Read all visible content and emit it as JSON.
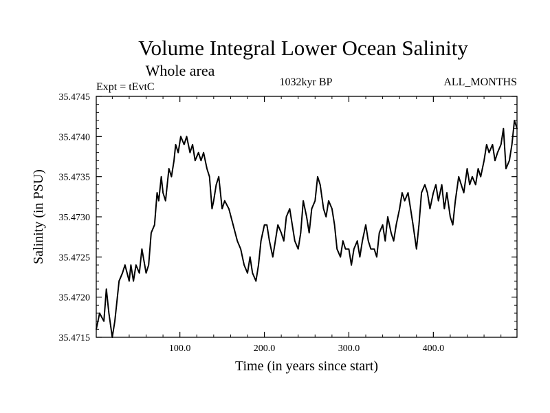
{
  "chart_data": {
    "type": "line",
    "title": "Volume Integral Lower Ocean Salinity",
    "subtitle": "Whole area",
    "annotations": {
      "left": "Expt = tEvtC",
      "center": "1032kyr BP",
      "right": "ALL_MONTHS"
    },
    "xlabel": "Time (in years since start)",
    "ylabel": "Salinity (in PSU)",
    "xlim": [
      1,
      499
    ],
    "ylim": [
      35.4715,
      35.4745
    ],
    "xticks": [
      100,
      200,
      300,
      400
    ],
    "xtick_labels": [
      "100.0",
      "200.0",
      "300.0",
      "400.0"
    ],
    "yticks": [
      35.4715,
      35.472,
      35.4725,
      35.473,
      35.4735,
      35.474,
      35.4745
    ],
    "ytick_labels": [
      "35.4715",
      "35.4720",
      "35.4725",
      "35.4730",
      "35.4735",
      "35.4740",
      "35.4745"
    ],
    "grid": false,
    "line_color": "#000000",
    "series": [
      {
        "name": "salinity",
        "x": [
          1,
          5,
          10,
          13,
          16,
          20,
          23,
          25,
          28,
          32,
          35,
          40,
          42,
          45,
          48,
          52,
          55,
          60,
          63,
          66,
          70,
          73,
          75,
          78,
          80,
          83,
          87,
          90,
          93,
          95,
          98,
          101,
          105,
          108,
          112,
          115,
          118,
          122,
          125,
          128,
          132,
          135,
          138,
          140,
          143,
          146,
          150,
          153,
          158,
          163,
          168,
          172,
          176,
          180,
          183,
          186,
          190,
          193,
          196,
          200,
          203,
          206,
          210,
          213,
          216,
          220,
          223,
          226,
          230,
          233,
          236,
          240,
          243,
          246,
          250,
          253,
          256,
          260,
          263,
          266,
          270,
          273,
          276,
          280,
          283,
          286,
          290,
          293,
          296,
          300,
          303,
          306,
          310,
          313,
          316,
          320,
          323,
          326,
          330,
          333,
          336,
          340,
          343,
          346,
          350,
          353,
          356,
          360,
          363,
          366,
          370,
          373,
          376,
          380,
          383,
          386,
          390,
          393,
          396,
          400,
          403,
          406,
          410,
          413,
          416,
          420,
          423,
          426,
          430,
          433,
          436,
          440,
          443,
          446,
          450,
          453,
          456,
          460,
          463,
          466,
          470,
          473,
          476,
          480,
          483,
          486,
          490,
          493,
          496,
          499
        ],
        "values": [
          35.4716,
          35.4718,
          35.4717,
          35.4721,
          35.4718,
          35.4715,
          35.4717,
          35.4719,
          35.4722,
          35.4723,
          35.4724,
          35.4722,
          35.4724,
          35.4722,
          35.4724,
          35.4723,
          35.4726,
          35.4723,
          35.4724,
          35.4728,
          35.4729,
          35.4733,
          35.4732,
          35.4735,
          35.4733,
          35.4732,
          35.4736,
          35.4735,
          35.4737,
          35.4739,
          35.4738,
          35.474,
          35.4739,
          35.474,
          35.4738,
          35.4739,
          35.4737,
          35.4738,
          35.4737,
          35.4738,
          35.4736,
          35.4735,
          35.4731,
          35.4732,
          35.4734,
          35.4735,
          35.4731,
          35.4732,
          35.4731,
          35.4729,
          35.4727,
          35.4726,
          35.4724,
          35.4723,
          35.4725,
          35.4723,
          35.4722,
          35.4724,
          35.4727,
          35.4729,
          35.4729,
          35.4727,
          35.4725,
          35.4727,
          35.4729,
          35.4728,
          35.4727,
          35.473,
          35.4731,
          35.4729,
          35.4727,
          35.4726,
          35.4728,
          35.4732,
          35.473,
          35.4728,
          35.4731,
          35.4732,
          35.4735,
          35.4734,
          35.4731,
          35.473,
          35.4732,
          35.4731,
          35.4729,
          35.4726,
          35.4725,
          35.4727,
          35.4726,
          35.4726,
          35.4724,
          35.4726,
          35.4727,
          35.4725,
          35.4727,
          35.4729,
          35.4727,
          35.4726,
          35.4726,
          35.4725,
          35.4728,
          35.4729,
          35.4727,
          35.473,
          35.4728,
          35.4727,
          35.4729,
          35.4731,
          35.4733,
          35.4732,
          35.4733,
          35.4731,
          35.4729,
          35.4726,
          35.4729,
          35.4733,
          35.4734,
          35.4733,
          35.4731,
          35.4733,
          35.4734,
          35.4732,
          35.4734,
          35.4731,
          35.4733,
          35.473,
          35.4729,
          35.4732,
          35.4735,
          35.4734,
          35.4733,
          35.4736,
          35.4734,
          35.4735,
          35.4734,
          35.4736,
          35.4735,
          35.4737,
          35.4739,
          35.4738,
          35.4739,
          35.4737,
          35.4738,
          35.4739,
          35.4741,
          35.4736,
          35.4737,
          35.4739,
          35.4742,
          35.4741
        ]
      }
    ]
  }
}
